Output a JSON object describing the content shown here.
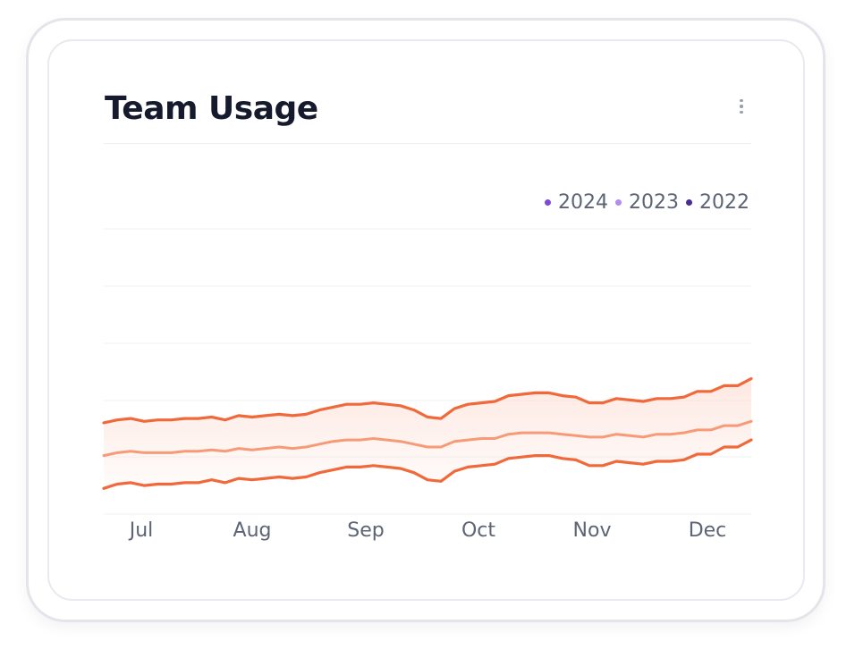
{
  "card": {
    "title": "Team Usage",
    "menu_icon": "more-vertical-icon"
  },
  "colors": {
    "line": "#f0693a",
    "line_mid": "#f79a77",
    "band_top": "#fde4dc",
    "grid": "#eef0f3"
  },
  "chart_data": {
    "type": "area",
    "title": "Team Usage",
    "xlabel": "",
    "ylabel": "",
    "x_ticks": [
      "Jul",
      "Aug",
      "Sep",
      "Oct",
      "Nov",
      "Dec"
    ],
    "legend": [
      {
        "name": "2024",
        "color": "#7d4ad8"
      },
      {
        "name": "2023",
        "color": "#b48cf0"
      },
      {
        "name": "2022",
        "color": "#4b2a9a"
      }
    ],
    "legend_position": "top-right",
    "grid": true,
    "y_axis_range": [
      0,
      100
    ],
    "series": [
      {
        "role": "upper-bound",
        "values": [
          32,
          33,
          33.5,
          32.5,
          33,
          33,
          33.5,
          33.5,
          34,
          33,
          34.5,
          34,
          34.5,
          35,
          34.5,
          35,
          36.5,
          37.5,
          38.5,
          38.5,
          39,
          38.5,
          38,
          36.5,
          34,
          33.5,
          37,
          38.5,
          39,
          39.5,
          41.5,
          42,
          42.5,
          42.5,
          41.5,
          41,
          39,
          39,
          40.5,
          40,
          39.5,
          40.5,
          40.5,
          41,
          43,
          43,
          45,
          45,
          47.5
        ]
      },
      {
        "role": "lower-bound",
        "values": [
          9,
          10.5,
          11,
          10,
          10.5,
          10.5,
          11,
          11,
          12,
          11,
          12.5,
          12,
          12.5,
          13,
          12.5,
          13,
          14.5,
          15.5,
          16.5,
          16.5,
          17,
          16.5,
          16,
          14.5,
          12,
          11.5,
          15,
          16.5,
          17,
          17.5,
          19.5,
          20,
          20.5,
          20.5,
          19.5,
          19,
          17,
          17,
          18.5,
          18,
          17.5,
          18.5,
          18.5,
          19,
          21,
          21,
          23.5,
          23.5,
          26
        ]
      },
      {
        "role": "median",
        "values": [
          20.5,
          21.5,
          22,
          21.5,
          21.5,
          21.5,
          22,
          22,
          22.5,
          22,
          23,
          22.5,
          23,
          23.5,
          23,
          23.5,
          24.5,
          25.5,
          26,
          26,
          26.5,
          26,
          25.5,
          24.5,
          23.5,
          23.5,
          25.5,
          26,
          26.5,
          26.5,
          28,
          28.5,
          28.5,
          28.5,
          28,
          27.5,
          27,
          27,
          28,
          27.5,
          27,
          28,
          28,
          28.5,
          29.5,
          29.5,
          31,
          31,
          32.5
        ]
      }
    ]
  }
}
